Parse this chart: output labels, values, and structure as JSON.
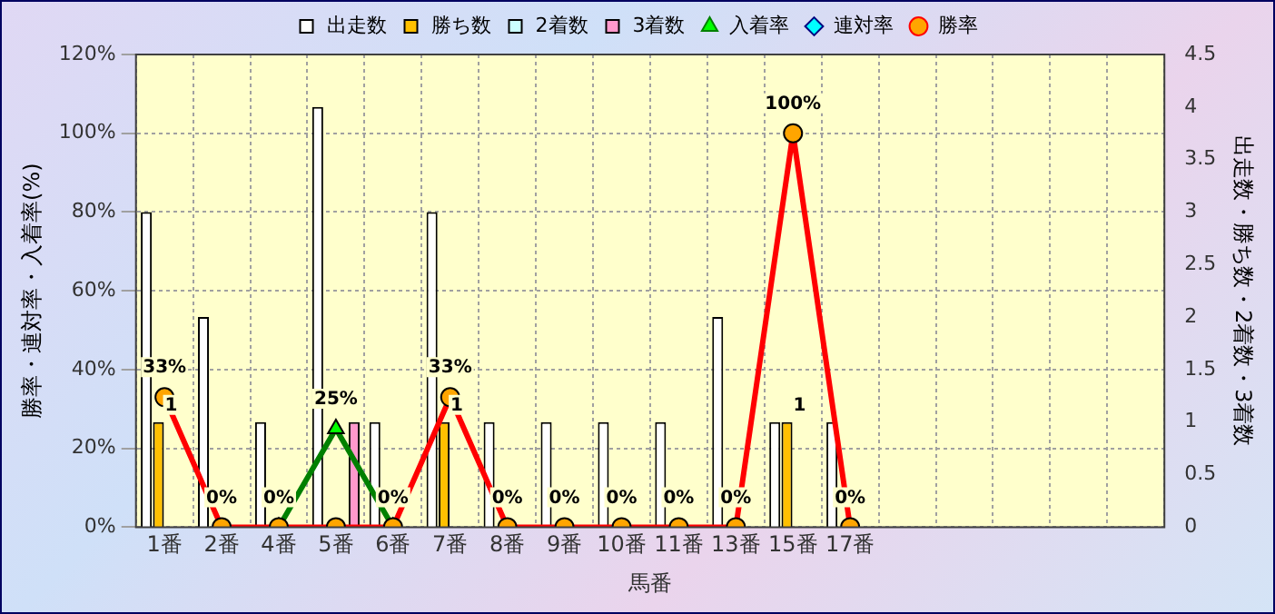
{
  "chart_data": {
    "type": "bar",
    "xlabel": "馬番",
    "ylabel": "勝率・連対率・入着率(%)",
    "y2label": "出走数・勝ち数・2着数・3着数",
    "categories": [
      "1番",
      "2番",
      "4番",
      "5番",
      "6番",
      "7番",
      "8番",
      "9番",
      "10番",
      "11番",
      "13番",
      "15番",
      "17番",
      null,
      null,
      null,
      null,
      null
    ],
    "series": [
      {
        "name": "出走数",
        "axis": "y2",
        "color": "#ffffff",
        "values": [
          3,
          2,
          1,
          4,
          1,
          3,
          1,
          1,
          1,
          1,
          2,
          1,
          1,
          null,
          null,
          null,
          null,
          null
        ]
      },
      {
        "name": "勝ち数",
        "axis": "y2",
        "color": "#ffc000",
        "values": [
          1,
          0,
          0,
          0,
          0,
          1,
          0,
          0,
          0,
          0,
          0,
          1,
          0,
          null,
          null,
          null,
          null,
          null
        ],
        "value_labels": [
          "1",
          null,
          null,
          null,
          null,
          "1",
          null,
          null,
          null,
          null,
          null,
          "1",
          null,
          null,
          null,
          null,
          null,
          null
        ]
      },
      {
        "name": "2着数",
        "axis": "y2",
        "color": "#ccffff",
        "values": [
          0,
          0,
          0,
          0,
          0,
          0,
          0,
          0,
          0,
          0,
          0,
          0,
          0,
          null,
          null,
          null,
          null,
          null
        ]
      },
      {
        "name": "3着数",
        "axis": "y2",
        "color": "#ff99cc",
        "values": [
          0,
          0,
          0,
          1,
          0,
          0,
          0,
          0,
          0,
          0,
          0,
          0,
          0,
          null,
          null,
          null,
          null,
          null
        ]
      },
      {
        "name": "入着率",
        "type": "line",
        "color": "#008000",
        "marker": "triangle",
        "values": [
          null,
          null,
          0,
          25,
          0,
          null,
          null,
          null,
          null,
          null,
          null,
          null,
          null,
          null,
          null,
          null,
          null,
          null
        ],
        "value_labels": [
          null,
          null,
          null,
          "25%",
          null,
          null,
          null,
          null,
          null,
          null,
          null,
          null,
          null,
          null,
          null,
          null,
          null,
          null
        ]
      },
      {
        "name": "連対率",
        "type": "line",
        "color": "#000080",
        "marker": "diamond",
        "values": [
          null,
          null,
          null,
          null,
          null,
          null,
          null,
          null,
          null,
          null,
          null,
          null,
          null,
          null,
          null,
          null,
          null,
          null
        ]
      },
      {
        "name": "勝率",
        "type": "line",
        "color": "#ff0000",
        "marker": "circle",
        "values": [
          33,
          0,
          0,
          0,
          0,
          33,
          0,
          0,
          0,
          0,
          0,
          100,
          0,
          null,
          null,
          null,
          null,
          null
        ],
        "value_labels": [
          "33%",
          "0%",
          "0%",
          null,
          "0%",
          "33%",
          "0%",
          "0%",
          "0%",
          "0%",
          "0%",
          "100%",
          "0%",
          null,
          null,
          null,
          null,
          null
        ]
      }
    ],
    "ylim": [
      0,
      120
    ],
    "yticks": [
      {
        "value": 0,
        "label": "0%"
      },
      {
        "value": 20,
        "label": "20%"
      },
      {
        "value": 40,
        "label": "40%"
      },
      {
        "value": 60,
        "label": "60%"
      },
      {
        "value": 80,
        "label": "80%"
      },
      {
        "value": 100,
        "label": "100%"
      },
      {
        "value": 120,
        "label": "120%"
      }
    ],
    "y2lim": [
      0,
      4.5
    ],
    "y2ticks": [
      0,
      0.5,
      1,
      1.5,
      2,
      2.5,
      3,
      3.5,
      4,
      4.5
    ],
    "grid": true,
    "legend": "top"
  }
}
